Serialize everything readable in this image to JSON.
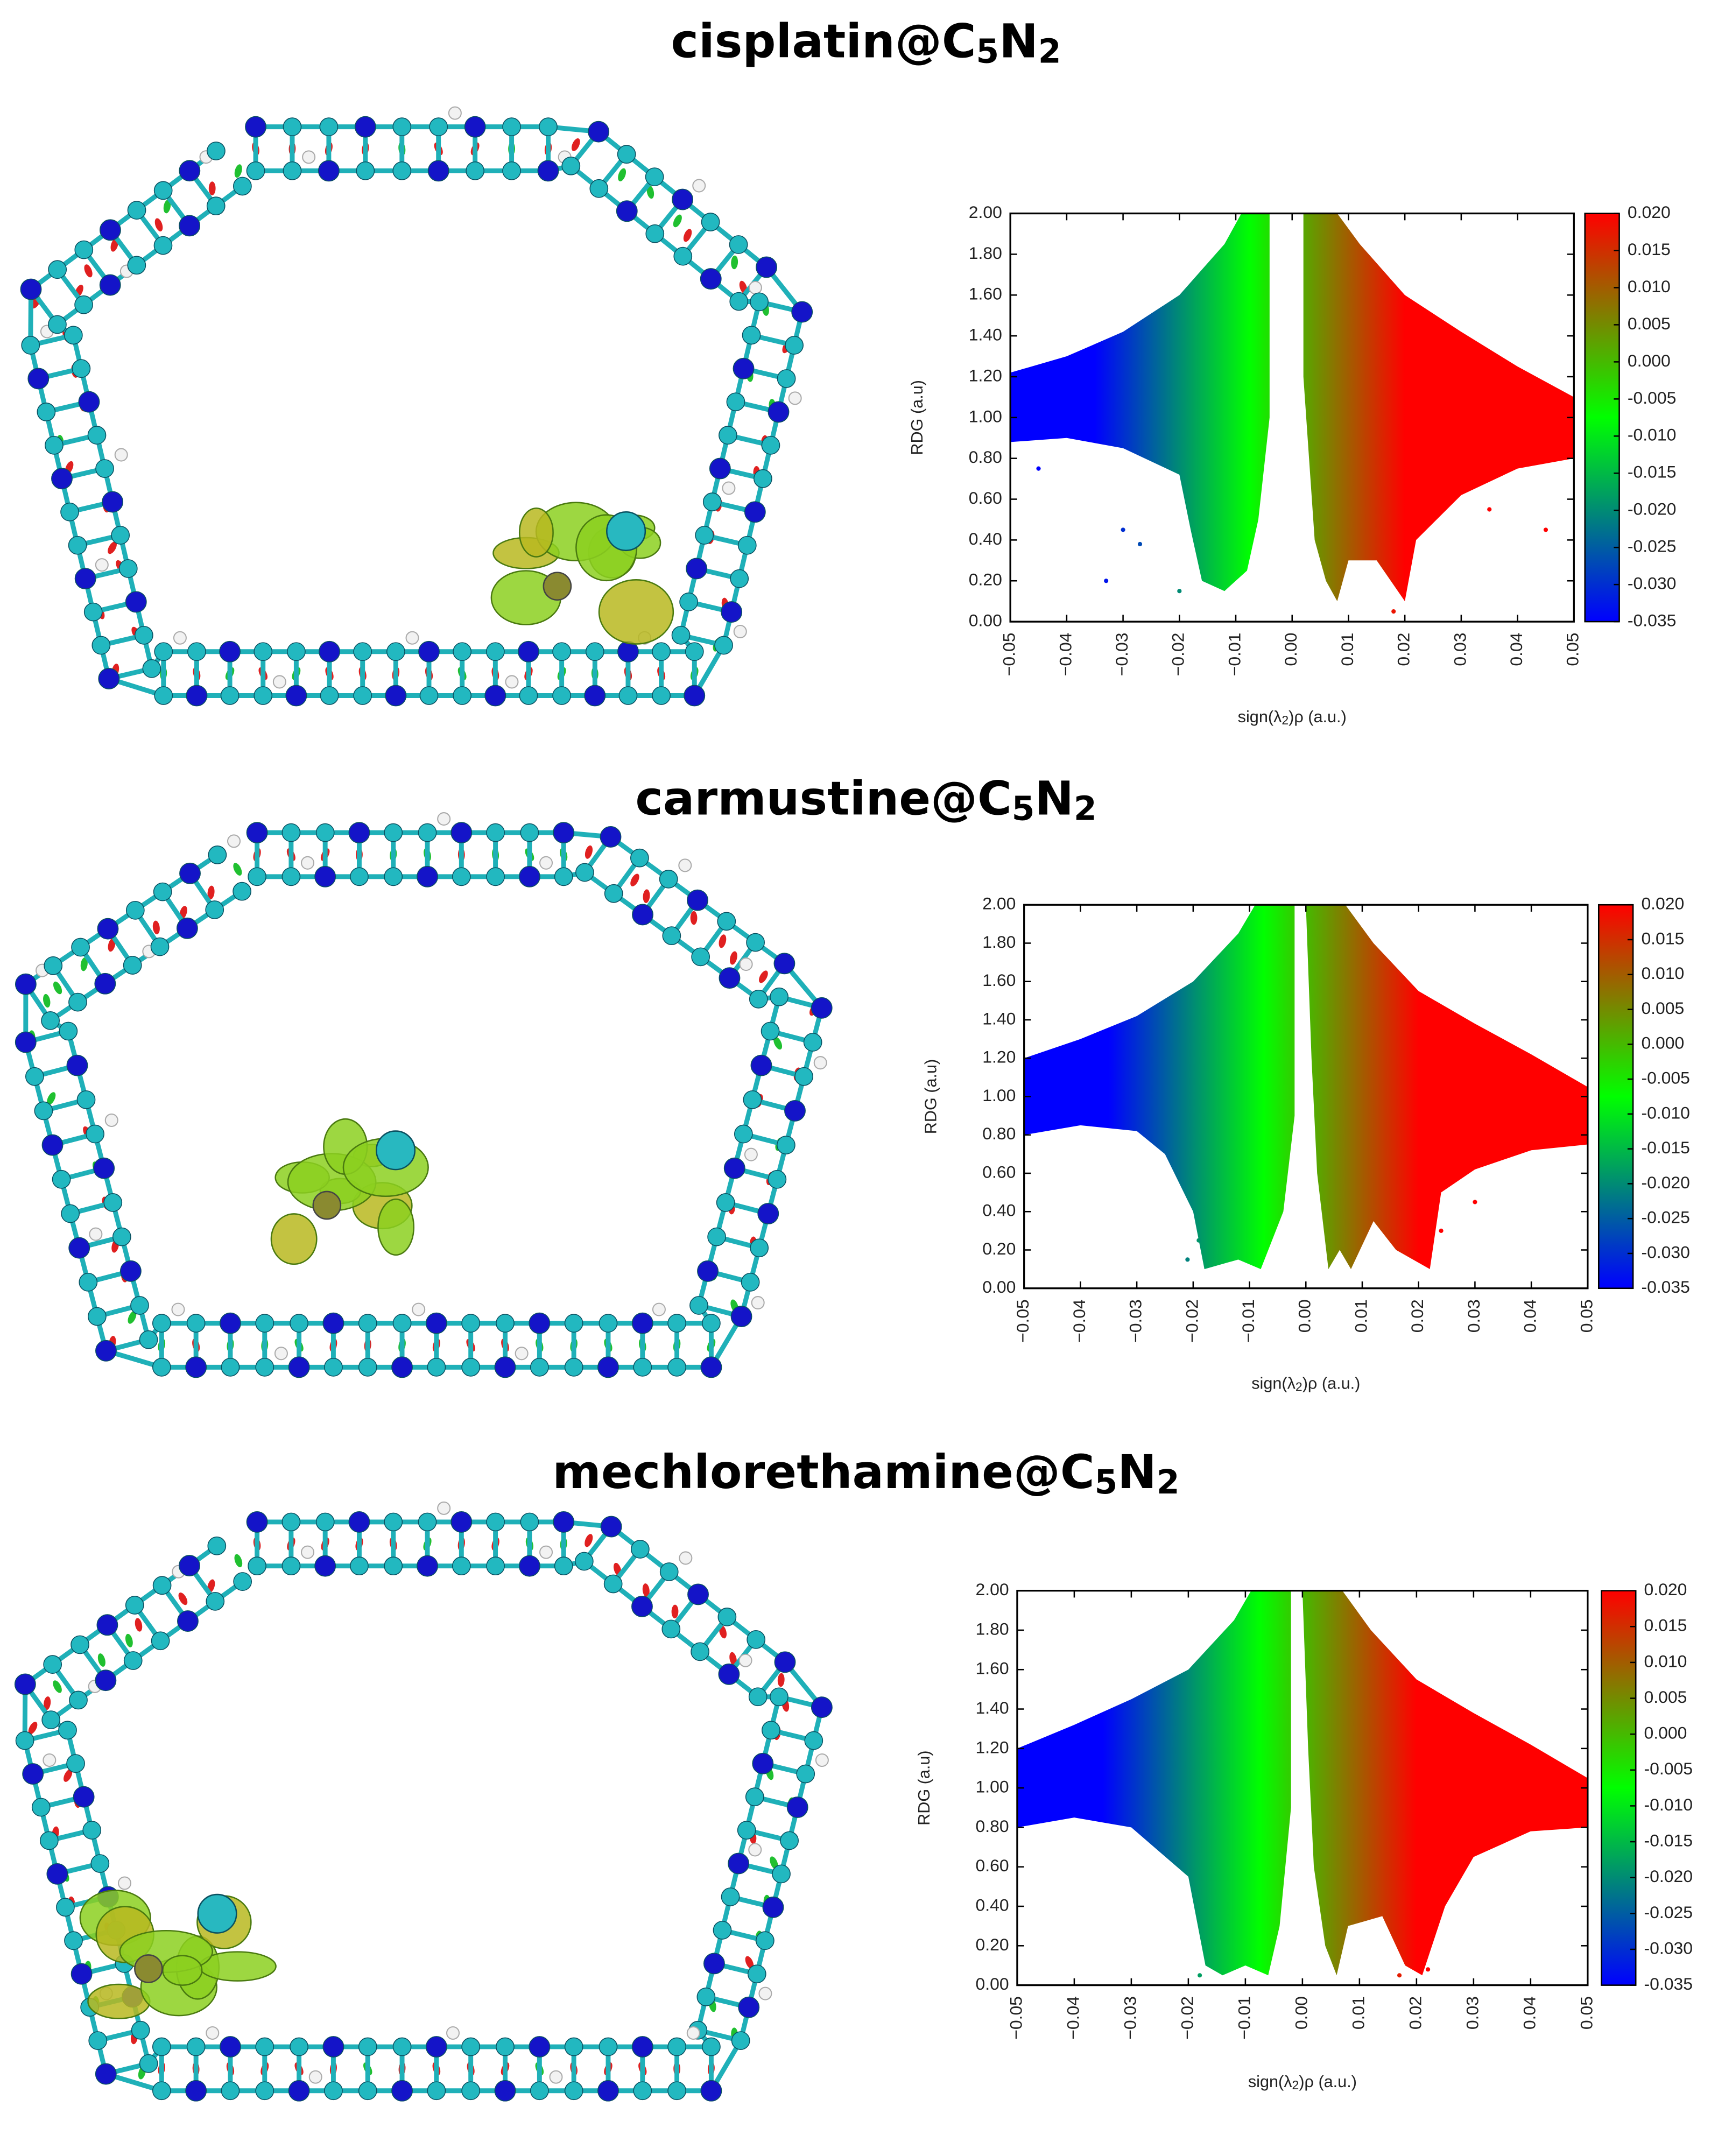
{
  "chart_data": [
    {
      "type": "scatter",
      "title": [
        "cisplatin@C",
        "5",
        "N",
        "2"
      ],
      "xlabel": [
        "sign(λ",
        "2",
        ")ρ (a.u.)"
      ],
      "ylabel": "RDG (a.u)",
      "xlim": [
        -0.05,
        0.05
      ],
      "ylim": [
        0,
        2
      ],
      "xticks": [
        {
          "value": -0.05,
          "label": "−0.05"
        },
        {
          "value": -0.04,
          "label": "−0.04"
        },
        {
          "value": -0.03,
          "label": "−0.03"
        },
        {
          "value": -0.02,
          "label": "−0.02"
        },
        {
          "value": -0.01,
          "label": "−0.01"
        },
        {
          "value": 0,
          "label": "0.00"
        },
        {
          "value": 0.01,
          "label": "0.01"
        },
        {
          "value": 0.02,
          "label": "0.02"
        },
        {
          "value": 0.03,
          "label": "0.03"
        },
        {
          "value": 0.04,
          "label": "0.04"
        },
        {
          "value": 0.05,
          "label": "0.05"
        }
      ],
      "yticks": [
        {
          "value": 0,
          "label": "0.00"
        },
        {
          "value": 0.2,
          "label": "0.20"
        },
        {
          "value": 0.4,
          "label": "0.40"
        },
        {
          "value": 0.6,
          "label": "0.60"
        },
        {
          "value": 0.8,
          "label": "0.80"
        },
        {
          "value": 1,
          "label": "1.00"
        },
        {
          "value": 1.2,
          "label": "1.20"
        },
        {
          "value": 1.4,
          "label": "1.40"
        },
        {
          "value": 1.6,
          "label": "1.60"
        },
        {
          "value": 1.8,
          "label": "1.80"
        },
        {
          "value": 2,
          "label": "2.00"
        }
      ],
      "colorbar": {
        "lim": [
          -0.035,
          0.02
        ],
        "colors": [
          "#0000ff",
          "#00ff00",
          "#ff0000"
        ],
        "ticks": [
          {
            "value": 0.02,
            "label": "0.020"
          },
          {
            "value": 0.015,
            "label": "0.015"
          },
          {
            "value": 0.01,
            "label": "0.010"
          },
          {
            "value": 0.005,
            "label": "0.005"
          },
          {
            "value": 0,
            "label": "0.000"
          },
          {
            "value": -0.005,
            "label": "-0.005"
          },
          {
            "value": -0.01,
            "label": "-0.010"
          },
          {
            "value": -0.015,
            "label": "-0.015"
          },
          {
            "value": -0.02,
            "label": "-0.020"
          },
          {
            "value": -0.025,
            "label": "-0.025"
          },
          {
            "value": -0.03,
            "label": "-0.030"
          },
          {
            "value": -0.035,
            "label": "-0.035"
          }
        ]
      },
      "regions": [
        {
          "x": [
            -0.05,
            -0.04,
            -0.03,
            -0.02,
            -0.012,
            -0.009,
            -0.004,
            -0.004,
            -0.006,
            -0.008,
            -0.012,
            -0.016,
            -0.018,
            -0.02,
            -0.03,
            -0.04,
            -0.05
          ],
          "y": [
            1.22,
            1.3,
            1.42,
            1.6,
            1.85,
            2,
            2,
            1,
            0.5,
            0.25,
            0.15,
            0.2,
            0.45,
            0.72,
            0.85,
            0.9,
            0.88
          ]
        },
        {
          "x": [
            0.002,
            0.008,
            0.012,
            0.02,
            0.03,
            0.04,
            0.05,
            0.05,
            0.04,
            0.03,
            0.022,
            0.02,
            0.015,
            0.01,
            0.008,
            0.006,
            0.004,
            0.003,
            0.002
          ],
          "y": [
            2,
            2,
            1.85,
            1.6,
            1.42,
            1.25,
            1.1,
            0.8,
            0.75,
            0.62,
            0.4,
            0.1,
            0.3,
            0.3,
            0.1,
            0.2,
            0.4,
            0.8,
            1.2
          ]
        }
      ],
      "points": {
        "x": [
          -0.033,
          -0.03,
          -0.027,
          -0.02,
          -0.045,
          0.022,
          0.045,
          0.035,
          0.018
        ],
        "y": [
          0.2,
          0.45,
          0.38,
          0.15,
          0.75,
          0.45,
          0.45,
          0.55,
          0.05
        ]
      }
    },
    {
      "type": "scatter",
      "title": [
        "carmustine@C",
        "5",
        "N",
        "2"
      ],
      "xlabel": [
        "sign(λ",
        "2",
        ")ρ (a.u.)"
      ],
      "ylabel": "RDG (a.u)",
      "xlim": [
        -0.05,
        0.05
      ],
      "ylim": [
        0,
        2
      ],
      "xticks": [
        {
          "value": -0.05,
          "label": "−0.05"
        },
        {
          "value": -0.04,
          "label": "−0.04"
        },
        {
          "value": -0.03,
          "label": "−0.03"
        },
        {
          "value": -0.02,
          "label": "−0.02"
        },
        {
          "value": -0.01,
          "label": "−0.01"
        },
        {
          "value": 0,
          "label": "0.00"
        },
        {
          "value": 0.01,
          "label": "0.01"
        },
        {
          "value": 0.02,
          "label": "0.02"
        },
        {
          "value": 0.03,
          "label": "0.03"
        },
        {
          "value": 0.04,
          "label": "0.04"
        },
        {
          "value": 0.05,
          "label": "0.05"
        }
      ],
      "yticks": [
        {
          "value": 0,
          "label": "0.00"
        },
        {
          "value": 0.2,
          "label": "0.20"
        },
        {
          "value": 0.4,
          "label": "0.40"
        },
        {
          "value": 0.6,
          "label": "0.60"
        },
        {
          "value": 0.8,
          "label": "0.80"
        },
        {
          "value": 1,
          "label": "1.00"
        },
        {
          "value": 1.2,
          "label": "1.20"
        },
        {
          "value": 1.4,
          "label": "1.40"
        },
        {
          "value": 1.6,
          "label": "1.60"
        },
        {
          "value": 1.8,
          "label": "1.80"
        },
        {
          "value": 2,
          "label": "2.00"
        }
      ],
      "colorbar": {
        "lim": [
          -0.035,
          0.02
        ],
        "colors": [
          "#0000ff",
          "#00ff00",
          "#ff0000"
        ],
        "ticks": [
          {
            "value": 0.02,
            "label": "0.020"
          },
          {
            "value": 0.015,
            "label": "0.015"
          },
          {
            "value": 0.01,
            "label": "0.010"
          },
          {
            "value": 0.005,
            "label": "0.005"
          },
          {
            "value": 0,
            "label": "0.000"
          },
          {
            "value": -0.005,
            "label": "-0.005"
          },
          {
            "value": -0.01,
            "label": "-0.010"
          },
          {
            "value": -0.015,
            "label": "-0.015"
          },
          {
            "value": -0.02,
            "label": "-0.020"
          },
          {
            "value": -0.025,
            "label": "-0.025"
          },
          {
            "value": -0.03,
            "label": "-0.030"
          },
          {
            "value": -0.035,
            "label": "-0.035"
          }
        ]
      },
      "regions": [
        {
          "x": [
            -0.05,
            -0.04,
            -0.03,
            -0.02,
            -0.012,
            -0.009,
            -0.002,
            -0.002,
            -0.004,
            -0.008,
            -0.012,
            -0.018,
            -0.02,
            -0.025,
            -0.03,
            -0.04,
            -0.05
          ],
          "y": [
            1.2,
            1.3,
            1.42,
            1.6,
            1.85,
            2,
            2,
            0.9,
            0.4,
            0.1,
            0.15,
            0.1,
            0.4,
            0.7,
            0.82,
            0.85,
            0.8
          ]
        },
        {
          "x": [
            0,
            0.007,
            0.012,
            0.02,
            0.03,
            0.04,
            0.05,
            0.05,
            0.04,
            0.03,
            0.024,
            0.022,
            0.016,
            0.012,
            0.008,
            0.006,
            0.004,
            0.002,
            0.001
          ],
          "y": [
            2,
            2,
            1.8,
            1.55,
            1.38,
            1.22,
            1.05,
            0.75,
            0.72,
            0.62,
            0.5,
            0.1,
            0.2,
            0.35,
            0.1,
            0.2,
            0.1,
            0.6,
            1.2
          ]
        }
      ],
      "points": {
        "x": [
          -0.021,
          -0.019,
          0.02,
          0.024,
          0.03
        ],
        "y": [
          0.15,
          0.25,
          0.15,
          0.3,
          0.45
        ]
      }
    },
    {
      "type": "scatter",
      "title": [
        "mechlorethamine@C",
        "5",
        "N",
        "2"
      ],
      "xlabel": [
        "sign(λ",
        "2",
        ")ρ (a.u.)"
      ],
      "ylabel": "RDG (a.u)",
      "xlim": [
        -0.05,
        0.05
      ],
      "ylim": [
        0,
        2
      ],
      "xticks": [
        {
          "value": -0.05,
          "label": "−0.05"
        },
        {
          "value": -0.04,
          "label": "−0.04"
        },
        {
          "value": -0.03,
          "label": "−0.03"
        },
        {
          "value": -0.02,
          "label": "−0.02"
        },
        {
          "value": -0.01,
          "label": "−0.01"
        },
        {
          "value": 0,
          "label": "0.00"
        },
        {
          "value": 0.01,
          "label": "0.01"
        },
        {
          "value": 0.02,
          "label": "0.02"
        },
        {
          "value": 0.03,
          "label": "0.03"
        },
        {
          "value": 0.04,
          "label": "0.04"
        },
        {
          "value": 0.05,
          "label": "0.05"
        }
      ],
      "yticks": [
        {
          "value": 0,
          "label": "0.00"
        },
        {
          "value": 0.2,
          "label": "0.20"
        },
        {
          "value": 0.4,
          "label": "0.40"
        },
        {
          "value": 0.6,
          "label": "0.60"
        },
        {
          "value": 0.8,
          "label": "0.80"
        },
        {
          "value": 1,
          "label": "1.00"
        },
        {
          "value": 1.2,
          "label": "1.20"
        },
        {
          "value": 1.4,
          "label": "1.40"
        },
        {
          "value": 1.6,
          "label": "1.60"
        },
        {
          "value": 1.8,
          "label": "1.80"
        },
        {
          "value": 2,
          "label": "2.00"
        }
      ],
      "colorbar": {
        "lim": [
          -0.035,
          0.02
        ],
        "colors": [
          "#0000ff",
          "#00ff00",
          "#ff0000"
        ],
        "ticks": [
          {
            "value": 0.02,
            "label": "0.020"
          },
          {
            "value": 0.015,
            "label": "0.015"
          },
          {
            "value": 0.01,
            "label": "0.010"
          },
          {
            "value": 0.005,
            "label": "0.005"
          },
          {
            "value": 0,
            "label": "0.000"
          },
          {
            "value": -0.005,
            "label": "-0.005"
          },
          {
            "value": -0.01,
            "label": "-0.010"
          },
          {
            "value": -0.015,
            "label": "-0.015"
          },
          {
            "value": -0.02,
            "label": "-0.020"
          },
          {
            "value": -0.025,
            "label": "-0.025"
          },
          {
            "value": -0.03,
            "label": "-0.030"
          },
          {
            "value": -0.035,
            "label": "-0.035"
          }
        ]
      },
      "regions": [
        {
          "x": [
            -0.05,
            -0.04,
            -0.03,
            -0.02,
            -0.012,
            -0.009,
            -0.002,
            -0.002,
            -0.004,
            -0.006,
            -0.01,
            -0.014,
            -0.017,
            -0.02,
            -0.03,
            -0.04,
            -0.05
          ],
          "y": [
            1.2,
            1.32,
            1.45,
            1.6,
            1.85,
            2,
            2,
            0.9,
            0.3,
            0.05,
            0.1,
            0.05,
            0.1,
            0.55,
            0.8,
            0.85,
            0.8
          ]
        },
        {
          "x": [
            0,
            0.007,
            0.012,
            0.02,
            0.03,
            0.04,
            0.05,
            0.05,
            0.04,
            0.03,
            0.025,
            0.021,
            0.018,
            0.014,
            0.008,
            0.006,
            0.004,
            0.002,
            0.001
          ],
          "y": [
            2,
            2,
            1.8,
            1.55,
            1.38,
            1.22,
            1.05,
            0.8,
            0.78,
            0.65,
            0.4,
            0.05,
            0.1,
            0.35,
            0.3,
            0.05,
            0.2,
            0.6,
            1.2
          ]
        }
      ],
      "points": {
        "x": [
          -0.018,
          -0.015,
          0.017,
          0.022
        ],
        "y": [
          0.05,
          0.1,
          0.05,
          0.08
        ]
      }
    }
  ]
}
